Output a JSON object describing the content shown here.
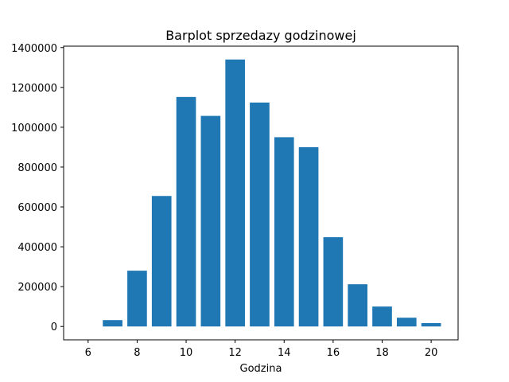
{
  "chart_data": {
    "type": "bar",
    "title": "Barplot sprzedazy godzinowej",
    "xlabel": "Godzina",
    "ylabel": "",
    "x": [
      7,
      8,
      9,
      10,
      11,
      12,
      13,
      14,
      15,
      16,
      17,
      18,
      19,
      20
    ],
    "values": [
      32000,
      280000,
      655000,
      1152000,
      1057000,
      1340000,
      1124000,
      950000,
      900000,
      448000,
      212000,
      100000,
      44000,
      17000
    ],
    "bar_color": "#1f77b4",
    "xlim": [
      5.0,
      21.1
    ],
    "ylim": [
      -67000,
      1407000
    ],
    "x_ticks": [
      6,
      8,
      10,
      12,
      14,
      16,
      18,
      20
    ],
    "y_ticks": [
      0,
      200000,
      400000,
      600000,
      800000,
      1000000,
      1200000,
      1400000
    ],
    "grid": false
  }
}
